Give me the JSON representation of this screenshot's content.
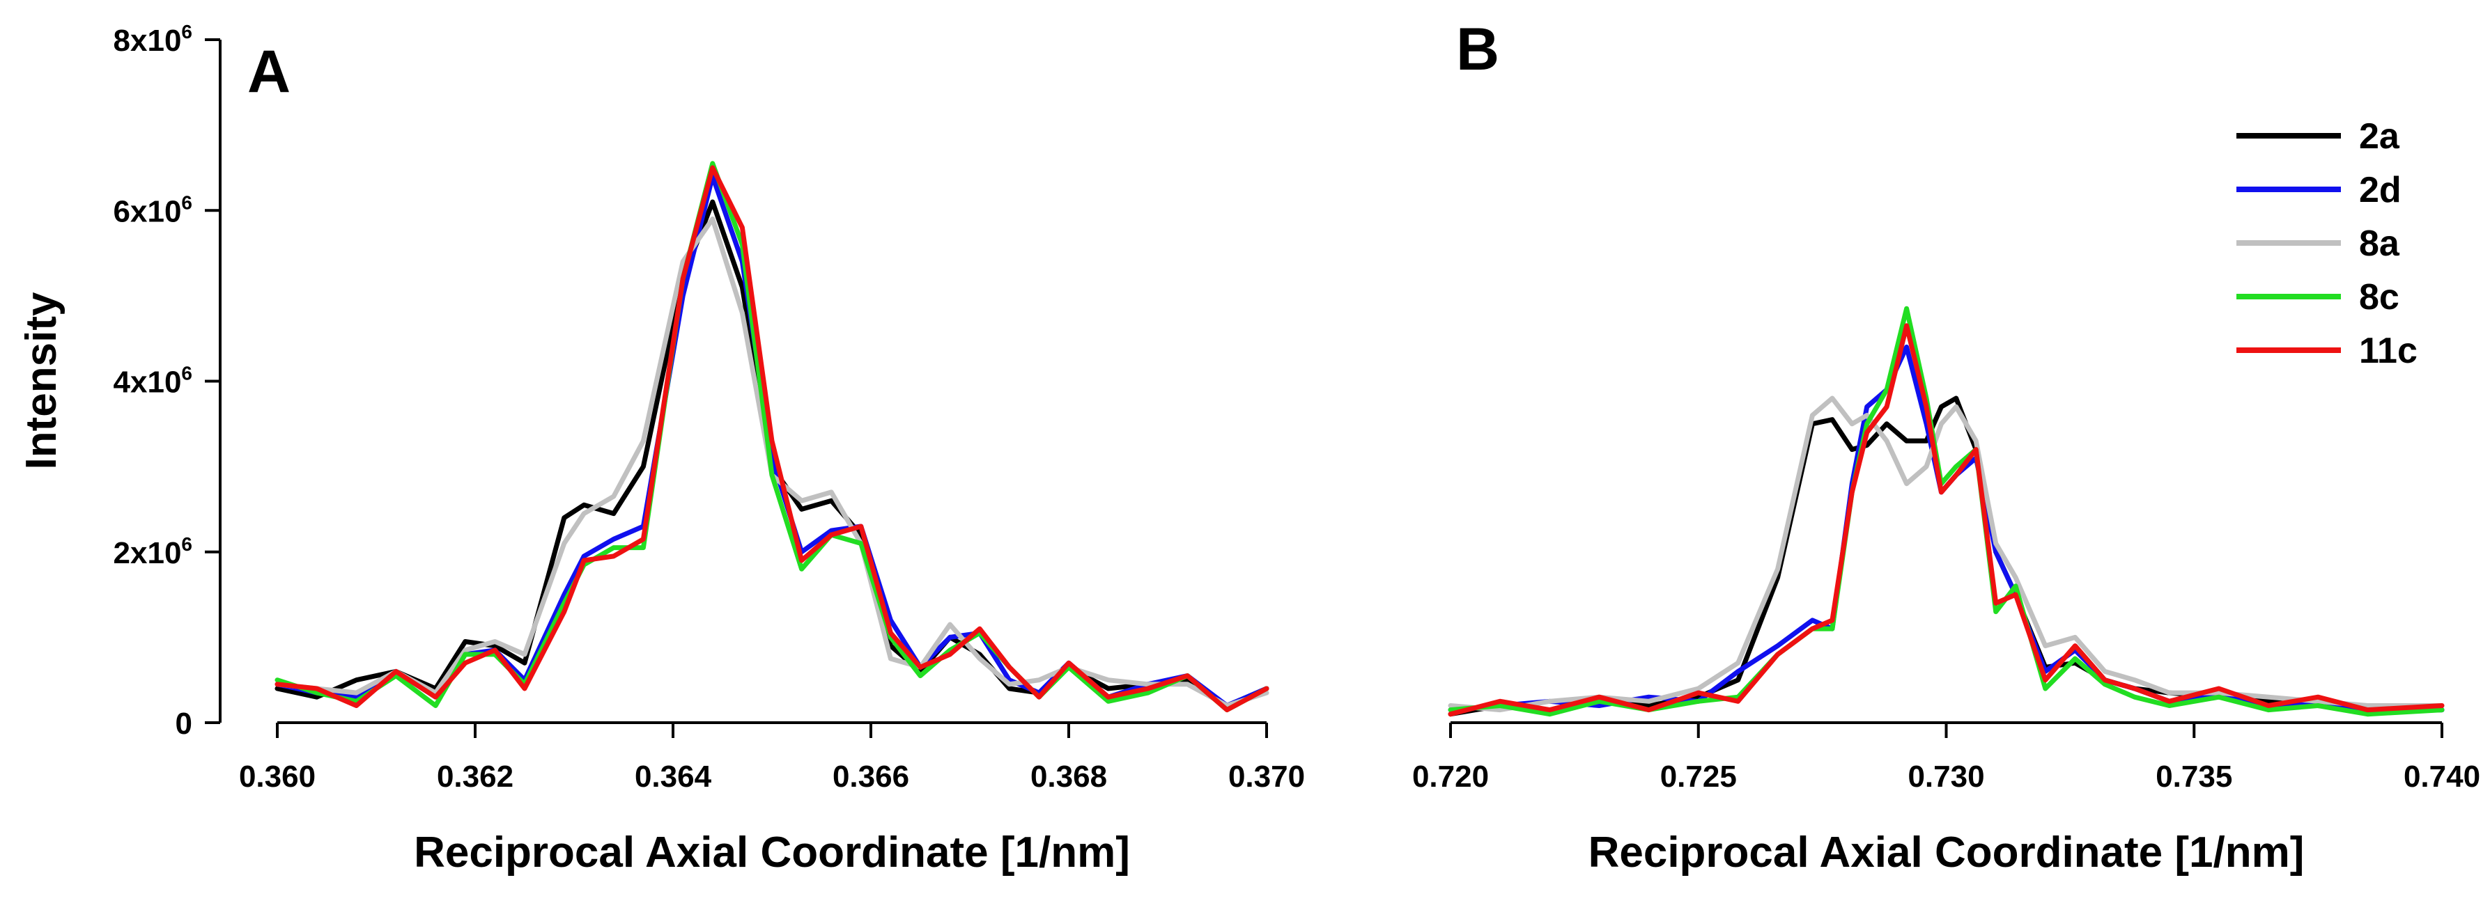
{
  "chart_data": [
    {
      "type": "line",
      "panel_label": "A",
      "xlabel": "Reciprocal Axial Coordinate [1/nm]",
      "ylabel": "Intensity",
      "xlim": [
        0.36,
        0.37
      ],
      "ylim": [
        0,
        8000000
      ],
      "x_ticks": [
        "0.360",
        "0.362",
        "0.364",
        "0.366",
        "0.368",
        "0.370"
      ],
      "x_tick_values": [
        0.36,
        0.362,
        0.364,
        0.366,
        0.368,
        0.37
      ],
      "y_ticks": [
        {
          "value": 0,
          "base": "0",
          "exp": ""
        },
        {
          "value": 2000000,
          "base": "2x10",
          "exp": "6"
        },
        {
          "value": 4000000,
          "base": "4x10",
          "exp": "6"
        },
        {
          "value": 6000000,
          "base": "6x10",
          "exp": "6"
        },
        {
          "value": 8000000,
          "base": "8x10",
          "exp": "6"
        }
      ],
      "series": [
        {
          "name": "2a",
          "color": "#000000",
          "x": [
            0.36,
            0.3604,
            0.3608,
            0.3612,
            0.3616,
            0.3619,
            0.3622,
            0.3625,
            0.3629,
            0.3631,
            0.3634,
            0.3637,
            0.3641,
            0.3644,
            0.3647,
            0.365,
            0.3653,
            0.3656,
            0.3659,
            0.3662,
            0.3665,
            0.3668,
            0.3671,
            0.3674,
            0.3677,
            0.368,
            0.3684,
            0.3688,
            0.3692,
            0.3696,
            0.37
          ],
          "values": [
            400000,
            300000,
            500000,
            600000,
            400000,
            950000,
            900000,
            700000,
            2400000,
            2550000,
            2450000,
            3000000,
            5200000,
            6100000,
            5100000,
            3000000,
            2500000,
            2600000,
            2200000,
            900000,
            600000,
            1000000,
            800000,
            400000,
            350000,
            650000,
            400000,
            450000,
            500000,
            200000,
            400000
          ]
        },
        {
          "name": "2d",
          "color": "#1010ee",
          "x": [
            0.36,
            0.3604,
            0.3608,
            0.3612,
            0.3616,
            0.3619,
            0.3622,
            0.3625,
            0.3629,
            0.3631,
            0.3634,
            0.3637,
            0.3641,
            0.3644,
            0.3647,
            0.365,
            0.3653,
            0.3656,
            0.3659,
            0.3662,
            0.3665,
            0.3668,
            0.3671,
            0.3674,
            0.3677,
            0.368,
            0.3684,
            0.3688,
            0.3692,
            0.3696,
            0.37
          ],
          "values": [
            450000,
            350000,
            300000,
            600000,
            300000,
            800000,
            850000,
            500000,
            1500000,
            1950000,
            2150000,
            2300000,
            5000000,
            6400000,
            5400000,
            3100000,
            2000000,
            2250000,
            2300000,
            1200000,
            650000,
            1000000,
            1050000,
            500000,
            350000,
            700000,
            300000,
            450000,
            550000,
            200000,
            400000
          ]
        },
        {
          "name": "8a",
          "color": "#c0c0c0",
          "x": [
            0.36,
            0.3604,
            0.3608,
            0.3612,
            0.3616,
            0.3619,
            0.3622,
            0.3625,
            0.3629,
            0.3631,
            0.3634,
            0.3637,
            0.3641,
            0.3644,
            0.3647,
            0.365,
            0.3653,
            0.3656,
            0.3659,
            0.3662,
            0.3665,
            0.3668,
            0.3671,
            0.3674,
            0.3677,
            0.368,
            0.3684,
            0.3688,
            0.3692,
            0.3696,
            0.37
          ],
          "values": [
            450000,
            400000,
            350000,
            600000,
            350000,
            850000,
            950000,
            800000,
            2100000,
            2450000,
            2650000,
            3300000,
            5400000,
            5900000,
            4800000,
            2900000,
            2600000,
            2700000,
            2100000,
            750000,
            650000,
            1150000,
            750000,
            450000,
            500000,
            650000,
            500000,
            450000,
            450000,
            200000,
            350000
          ]
        },
        {
          "name": "8c",
          "color": "#22dd22",
          "x": [
            0.36,
            0.3604,
            0.3608,
            0.3612,
            0.3616,
            0.3619,
            0.3622,
            0.3625,
            0.3629,
            0.3631,
            0.3634,
            0.3637,
            0.3641,
            0.3644,
            0.3647,
            0.365,
            0.3653,
            0.3656,
            0.3659,
            0.3662,
            0.3665,
            0.3668,
            0.3671,
            0.3674,
            0.3677,
            0.368,
            0.3684,
            0.3688,
            0.3692,
            0.3696,
            0.37
          ],
          "values": [
            500000,
            350000,
            250000,
            550000,
            200000,
            800000,
            800000,
            450000,
            1400000,
            1850000,
            2050000,
            2050000,
            5200000,
            6550000,
            5600000,
            2900000,
            1800000,
            2200000,
            2100000,
            1000000,
            550000,
            850000,
            1050000,
            650000,
            300000,
            650000,
            250000,
            350000,
            550000,
            150000,
            400000
          ]
        },
        {
          "name": "11c",
          "color": "#ee1111",
          "x": [
            0.36,
            0.3604,
            0.3608,
            0.3612,
            0.3616,
            0.3619,
            0.3622,
            0.3625,
            0.3629,
            0.3631,
            0.3634,
            0.3637,
            0.3641,
            0.3644,
            0.3647,
            0.365,
            0.3653,
            0.3656,
            0.3659,
            0.3662,
            0.3665,
            0.3668,
            0.3671,
            0.3674,
            0.3677,
            0.368,
            0.3684,
            0.3688,
            0.3692,
            0.3696,
            0.37
          ],
          "values": [
            450000,
            400000,
            200000,
            600000,
            300000,
            700000,
            850000,
            400000,
            1300000,
            1900000,
            1950000,
            2150000,
            5200000,
            6500000,
            5800000,
            3300000,
            1900000,
            2200000,
            2300000,
            1050000,
            650000,
            800000,
            1100000,
            650000,
            300000,
            700000,
            300000,
            400000,
            550000,
            150000,
            400000
          ]
        }
      ]
    },
    {
      "type": "line",
      "panel_label": "B",
      "xlabel": "Reciprocal Axial Coordinate [1/nm]",
      "ylabel": "",
      "xlim": [
        0.72,
        0.74
      ],
      "ylim": [
        0,
        8000000
      ],
      "x_ticks": [
        "0.720",
        "0.725",
        "0.730",
        "0.735",
        "0.740"
      ],
      "x_tick_values": [
        0.72,
        0.725,
        0.73,
        0.735,
        0.74
      ],
      "y_ticks": [],
      "series": [
        {
          "name": "2a",
          "color": "#000000",
          "x": [
            0.72,
            0.721,
            0.722,
            0.723,
            0.724,
            0.725,
            0.7258,
            0.7266,
            0.7273,
            0.7277,
            0.7281,
            0.7284,
            0.7288,
            0.7292,
            0.7296,
            0.7299,
            0.7302,
            0.7306,
            0.731,
            0.7314,
            0.732,
            0.7326,
            0.7332,
            0.7338,
            0.7345,
            0.7355,
            0.7365,
            0.7375,
            0.7385,
            0.74
          ],
          "values": [
            100000,
            200000,
            150000,
            250000,
            200000,
            300000,
            500000,
            1700000,
            3500000,
            3550000,
            3200000,
            3250000,
            3500000,
            3300000,
            3300000,
            3700000,
            3800000,
            3200000,
            2000000,
            1500000,
            650000,
            700000,
            500000,
            400000,
            350000,
            300000,
            250000,
            200000,
            150000,
            150000
          ]
        },
        {
          "name": "2d",
          "color": "#1010ee",
          "x": [
            0.72,
            0.721,
            0.722,
            0.723,
            0.724,
            0.725,
            0.7258,
            0.7266,
            0.7273,
            0.7277,
            0.7281,
            0.7284,
            0.7288,
            0.7292,
            0.7296,
            0.7299,
            0.7302,
            0.7306,
            0.731,
            0.7314,
            0.732,
            0.7326,
            0.7332,
            0.7338,
            0.7345,
            0.7355,
            0.7365,
            0.7375,
            0.7385,
            0.74
          ],
          "values": [
            150000,
            200000,
            250000,
            200000,
            300000,
            250000,
            600000,
            900000,
            1200000,
            1100000,
            2800000,
            3700000,
            3900000,
            4400000,
            3500000,
            2700000,
            2900000,
            3100000,
            2000000,
            1500000,
            600000,
            850000,
            500000,
            400000,
            250000,
            350000,
            200000,
            250000,
            150000,
            150000
          ]
        },
        {
          "name": "8a",
          "color": "#c0c0c0",
          "x": [
            0.72,
            0.721,
            0.722,
            0.723,
            0.724,
            0.725,
            0.7258,
            0.7266,
            0.7273,
            0.7277,
            0.7281,
            0.7284,
            0.7288,
            0.7292,
            0.7296,
            0.7299,
            0.7302,
            0.7306,
            0.731,
            0.7314,
            0.732,
            0.7326,
            0.7332,
            0.7338,
            0.7345,
            0.7355,
            0.7365,
            0.7375,
            0.7385,
            0.74
          ],
          "values": [
            200000,
            150000,
            250000,
            300000,
            250000,
            400000,
            700000,
            1800000,
            3600000,
            3800000,
            3500000,
            3600000,
            3300000,
            2800000,
            3000000,
            3500000,
            3700000,
            3300000,
            2100000,
            1700000,
            900000,
            1000000,
            600000,
            500000,
            350000,
            350000,
            300000,
            250000,
            200000,
            200000
          ]
        },
        {
          "name": "8c",
          "color": "#22dd22",
          "x": [
            0.72,
            0.721,
            0.722,
            0.723,
            0.724,
            0.725,
            0.7258,
            0.7266,
            0.7273,
            0.7277,
            0.7281,
            0.7284,
            0.7288,
            0.7292,
            0.7296,
            0.7299,
            0.7302,
            0.7306,
            0.731,
            0.7314,
            0.732,
            0.7326,
            0.7332,
            0.7338,
            0.7345,
            0.7355,
            0.7365,
            0.7375,
            0.7385,
            0.74
          ],
          "values": [
            150000,
            200000,
            100000,
            250000,
            150000,
            250000,
            300000,
            800000,
            1100000,
            1100000,
            2700000,
            3500000,
            3900000,
            4850000,
            3800000,
            2800000,
            3000000,
            3200000,
            1300000,
            1600000,
            400000,
            750000,
            450000,
            300000,
            200000,
            300000,
            150000,
            200000,
            100000,
            150000
          ]
        },
        {
          "name": "11c",
          "color": "#ee1111",
          "x": [
            0.72,
            0.721,
            0.722,
            0.723,
            0.724,
            0.725,
            0.7258,
            0.7266,
            0.7273,
            0.7277,
            0.7281,
            0.7284,
            0.7288,
            0.7292,
            0.7296,
            0.7299,
            0.7302,
            0.7306,
            0.731,
            0.7314,
            0.732,
            0.7326,
            0.7332,
            0.7338,
            0.7345,
            0.7355,
            0.7365,
            0.7375,
            0.7385,
            0.74
          ],
          "values": [
            100000,
            250000,
            150000,
            300000,
            150000,
            350000,
            250000,
            800000,
            1100000,
            1200000,
            2700000,
            3400000,
            3700000,
            4650000,
            3700000,
            2700000,
            2900000,
            3200000,
            1400000,
            1500000,
            500000,
            900000,
            500000,
            400000,
            250000,
            400000,
            200000,
            300000,
            150000,
            200000
          ]
        }
      ]
    }
  ]
}
